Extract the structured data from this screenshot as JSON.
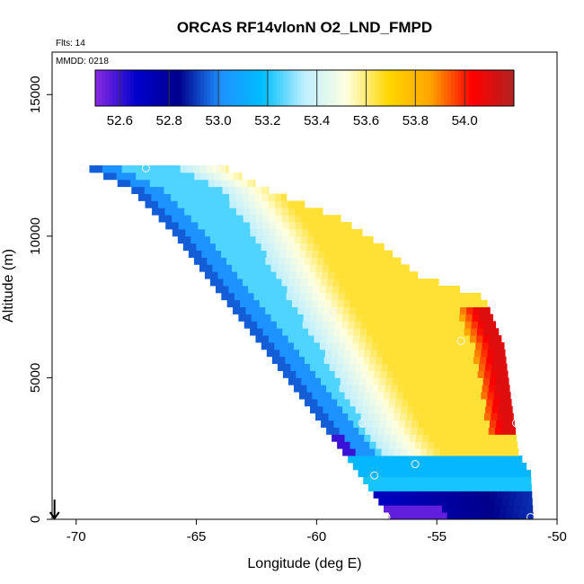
{
  "chart_data": {
    "type": "heatmap",
    "title": "ORCAS RF14vlonN O2_LND_FMPD",
    "annotations": {
      "flights": "Flts: 14",
      "date": "MMDD: 0218"
    },
    "xlabel": "Longitude (deg E)",
    "ylabel": "Altitude (m)",
    "xlim": [
      -71,
      -50
    ],
    "ylim": [
      0,
      16500
    ],
    "xticks": [
      -70,
      -65,
      -60,
      -55,
      -50
    ],
    "xtick_labels": [
      "-70",
      "-65",
      "-60",
      "-55",
      "-50"
    ],
    "yticks": [
      0,
      5000,
      10000,
      15000
    ],
    "ytick_labels": [
      "0",
      "5000",
      "10000",
      "15000"
    ],
    "colorbar": {
      "range": [
        52.5,
        54.2
      ],
      "ticks": [
        52.6,
        52.8,
        53.0,
        53.2,
        53.4,
        53.6,
        53.8,
        54.0
      ],
      "tick_labels": [
        "52.6",
        "52.8",
        "53.0",
        "53.2",
        "53.4",
        "53.6",
        "53.8",
        "54.0"
      ],
      "colors": [
        "#8a2be2",
        "#0000cd",
        "#00008b",
        "#1e90ff",
        "#00bfff",
        "#bfefff",
        "#ffffe0",
        "#ffd700",
        "#ffa500",
        "#ff0000",
        "#b22222"
      ]
    },
    "domain": {
      "top_alt": 12400,
      "left_edge": [
        [
          12400,
          -69.8
        ],
        [
          11500,
          -67.7
        ],
        [
          10000,
          -66.0
        ],
        [
          8000,
          -64.2
        ],
        [
          6000,
          -62.3
        ],
        [
          4000,
          -60.5
        ],
        [
          2000,
          -58.7
        ],
        [
          0,
          -57.0
        ]
      ],
      "right_edge": [
        [
          12400,
          -64.0
        ],
        [
          11500,
          -62.0
        ],
        [
          10500,
          -59.0
        ],
        [
          9500,
          -57.2
        ],
        [
          8500,
          -55.8
        ],
        [
          7700,
          -53.0
        ],
        [
          6000,
          -52.2
        ],
        [
          4000,
          -51.9
        ],
        [
          2200,
          -51.6
        ],
        [
          1500,
          -51.1
        ],
        [
          0,
          -51.0
        ]
      ]
    },
    "value_field": [
      {
        "name": "blue core band",
        "value": 53.0
      },
      {
        "name": "inner light band",
        "value": 53.25
      },
      {
        "name": "upper left plume",
        "value": 53.35
      },
      {
        "name": "yellow plume",
        "value": 53.65
      },
      {
        "name": "red maximum",
        "value": 54.1
      },
      {
        "name": "surface minimum",
        "value": 52.55
      }
    ],
    "observations": [
      {
        "lon": -69.7,
        "alt": 12400
      },
      {
        "lon": -67.1,
        "alt": 12400
      },
      {
        "lon": -64.0,
        "alt": 12400
      },
      {
        "lon": -59.3,
        "alt": 7300
      },
      {
        "lon": -52.7,
        "alt": 7600
      },
      {
        "lon": -54.0,
        "alt": 6300
      },
      {
        "lon": -58.1,
        "alt": 3400
      },
      {
        "lon": -51.7,
        "alt": 3400
      },
      {
        "lon": -55.9,
        "alt": 1950
      },
      {
        "lon": -57.6,
        "alt": 1550
      },
      {
        "lon": -57.1,
        "alt": 80
      },
      {
        "lon": -51.1,
        "alt": 80
      }
    ],
    "marker": {
      "type": "down-arrow",
      "lon": -70.9
    }
  }
}
